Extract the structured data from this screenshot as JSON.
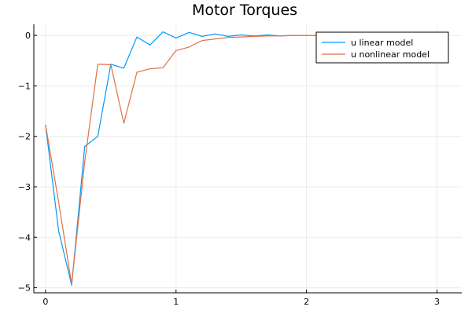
{
  "chart_data": {
    "type": "line",
    "title": "Motor Torques",
    "xlabel": "",
    "ylabel": "",
    "xlim": [
      -0.09,
      3.19
    ],
    "ylim": [
      -5.1,
      0.22
    ],
    "xticks": [
      0,
      1,
      2,
      3
    ],
    "xtick_labels": [
      "0",
      "1",
      "2",
      "3"
    ],
    "yticks": [
      0,
      -1,
      -2,
      -3,
      -4,
      -5
    ],
    "ytick_labels": [
      "0",
      "−1",
      "−2",
      "−3",
      "−4",
      "−5"
    ],
    "grid": true,
    "legend_position": "top-right",
    "series": [
      {
        "name": "u linear model",
        "color": "#009AFA",
        "x": [
          0,
          0.1,
          0.2,
          0.3,
          0.4,
          0.5,
          0.6,
          0.7,
          0.8,
          0.9,
          1.0,
          1.1,
          1.2,
          1.3,
          1.4,
          1.5,
          1.6,
          1.7,
          1.8,
          1.9,
          2.0,
          2.1,
          2.2,
          2.3,
          2.4,
          2.5,
          2.6,
          2.7,
          2.8,
          2.9,
          3.0
        ],
        "values": [
          -1.77,
          -3.87,
          -4.95,
          -2.2,
          -2.0,
          -0.57,
          -0.65,
          -0.03,
          -0.19,
          0.07,
          -0.05,
          0.06,
          -0.02,
          0.03,
          -0.02,
          0.01,
          -0.01,
          0.01,
          -0.01,
          0.0,
          0.0,
          0.0,
          0.0,
          0.0,
          0.0,
          0.0,
          0.0,
          0.0,
          0.0,
          0.0,
          0.0
        ]
      },
      {
        "name": "u nonlinear model",
        "color": "#E26F46",
        "x": [
          0,
          0.1,
          0.2,
          0.3,
          0.4,
          0.5,
          0.6,
          0.7,
          0.8,
          0.9,
          1.0,
          1.1,
          1.2,
          1.3,
          1.4,
          1.5,
          1.6,
          1.7,
          1.8,
          1.9,
          2.0,
          2.1,
          2.2,
          2.3,
          2.4,
          2.5,
          2.6,
          2.7,
          2.8,
          2.9,
          3.0
        ],
        "values": [
          -1.77,
          -3.3,
          -4.93,
          -2.5,
          -0.57,
          -0.58,
          -1.74,
          -0.73,
          -0.66,
          -0.64,
          -0.3,
          -0.23,
          -0.1,
          -0.07,
          -0.04,
          -0.03,
          -0.02,
          -0.01,
          -0.01,
          0.0,
          0.0,
          0.0,
          0.0,
          0.0,
          0.0,
          0.0,
          0.0,
          0.0,
          0.0,
          0.0,
          0.0
        ]
      }
    ]
  }
}
